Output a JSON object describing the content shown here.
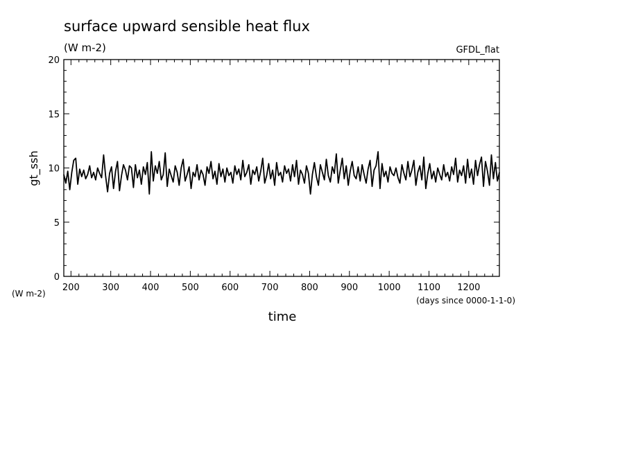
{
  "chart_data": {
    "type": "line",
    "title": "surface upward sensible heat flux",
    "subtitle": "(W m-2)",
    "source_label": "GFDL_flat",
    "ylabel": "gt_ssh",
    "yunit": "(W m-2)",
    "xlabel": "time",
    "xunit": "(days since 0000-1-1-0)",
    "xlim": [
      182,
      1277
    ],
    "ylim": [
      0,
      20
    ],
    "xticks": [
      "200",
      "300",
      "400",
      "500",
      "600",
      "700",
      "800",
      "900",
      "1000",
      "1100",
      "1200"
    ],
    "yticks": [
      "0",
      "5",
      "10",
      "15",
      "20"
    ],
    "grid": false,
    "legend": "none",
    "line_color": "#000000",
    "series": [
      {
        "x": [
          182,
          187,
          192,
          197,
          202,
          207,
          212,
          217,
          222,
          227,
          232,
          237,
          242,
          247,
          252,
          257,
          262,
          267,
          272,
          277,
          282,
          287,
          292,
          297,
          302,
          307,
          312,
          317,
          322,
          327,
          332,
          337,
          342,
          347,
          352,
          357,
          362,
          367,
          372,
          377,
          382,
          387,
          392,
          397,
          402,
          407,
          412,
          417,
          422,
          427,
          432,
          437,
          442,
          447,
          452,
          457,
          462,
          467,
          472,
          477,
          482,
          487,
          492,
          497,
          502,
          507,
          512,
          517,
          522,
          527,
          532,
          537,
          542,
          547,
          552,
          557,
          562,
          567,
          572,
          577,
          582,
          587,
          592,
          597,
          602,
          607,
          612,
          617,
          622,
          627,
          632,
          637,
          642,
          647,
          652,
          657,
          662,
          667,
          672,
          677,
          682,
          687,
          692,
          697,
          702,
          707,
          712,
          717,
          722,
          727,
          732,
          737,
          742,
          747,
          752,
          757,
          762,
          767,
          772,
          777,
          782,
          787,
          792,
          797,
          802,
          807,
          812,
          817,
          822,
          827,
          832,
          837,
          842,
          847,
          852,
          857,
          862,
          867,
          872,
          877,
          882,
          887,
          892,
          897,
          902,
          907,
          912,
          917,
          922,
          927,
          932,
          937,
          942,
          947,
          952,
          957,
          962,
          967,
          972,
          977,
          982,
          987,
          992,
          997,
          1002,
          1007,
          1012,
          1017,
          1022,
          1027,
          1032,
          1037,
          1042,
          1047,
          1052,
          1057,
          1062,
          1067,
          1072,
          1077,
          1082,
          1087,
          1092,
          1097,
          1102,
          1107,
          1112,
          1117,
          1122,
          1127,
          1132,
          1137,
          1142,
          1147,
          1152,
          1157,
          1162,
          1167,
          1172,
          1177,
          1182,
          1187,
          1192,
          1197,
          1202,
          1207,
          1212,
          1217,
          1222,
          1227,
          1232,
          1237,
          1242,
          1247,
          1252,
          1257,
          1262,
          1267,
          1272,
          1277
        ],
        "values": [
          9.4,
          8.6,
          9.7,
          8.0,
          9.6,
          10.7,
          10.9,
          8.5,
          9.9,
          9.2,
          9.8,
          9.0,
          9.4,
          10.2,
          9.1,
          9.6,
          8.9,
          10.0,
          9.5,
          9.1,
          11.2,
          9.3,
          7.8,
          9.5,
          10.1,
          8.1,
          9.7,
          10.6,
          7.9,
          9.3,
          10.3,
          9.8,
          8.9,
          10.2,
          10.0,
          8.2,
          10.3,
          9.1,
          9.8,
          8.5,
          10.1,
          9.4,
          10.5,
          7.6,
          11.5,
          8.8,
          10.2,
          9.5,
          10.6,
          8.9,
          9.4,
          11.4,
          8.3,
          9.9,
          9.3,
          8.7,
          10.2,
          9.6,
          8.4,
          10.0,
          10.8,
          8.8,
          9.4,
          10.1,
          8.1,
          9.6,
          9.2,
          10.3,
          8.9,
          9.8,
          9.4,
          8.4,
          10.1,
          9.5,
          10.6,
          9.0,
          9.7,
          8.5,
          10.4,
          9.2,
          9.9,
          8.7,
          10.0,
          9.3,
          9.6,
          8.6,
          10.2,
          9.4,
          9.9,
          8.9,
          10.7,
          9.2,
          9.6,
          10.3,
          8.5,
          9.8,
          9.4,
          10.1,
          8.8,
          9.7,
          10.9,
          8.6,
          9.3,
          10.4,
          9.0,
          9.8,
          8.4,
          10.5,
          9.3,
          9.6,
          8.7,
          10.2,
          9.5,
          9.9,
          8.8,
          10.3,
          9.2,
          10.7,
          8.5,
          9.8,
          9.4,
          8.6,
          10.2,
          9.5,
          7.6,
          9.4,
          10.5,
          9.2,
          8.4,
          10.3,
          9.6,
          8.9,
          10.8,
          9.3,
          8.7,
          10.1,
          9.5,
          11.3,
          8.6,
          9.8,
          10.9,
          9.0,
          10.2,
          8.4,
          9.7,
          10.6,
          9.3,
          9.0,
          10.1,
          8.8,
          10.3,
          9.4,
          8.6,
          9.9,
          10.7,
          8.3,
          9.8,
          10.2,
          11.5,
          8.1,
          10.4,
          9.2,
          9.7,
          8.7,
          10.1,
          9.5,
          9.3,
          10.0,
          9.1,
          8.6,
          10.3,
          9.5,
          8.9,
          10.6,
          9.2,
          9.8,
          10.7,
          8.4,
          9.6,
          10.2,
          8.9,
          11.0,
          8.1,
          9.5,
          10.4,
          9.0,
          9.7,
          8.7,
          10.0,
          9.4,
          8.9,
          10.3,
          9.2,
          9.6,
          8.8,
          10.1,
          9.4,
          10.9,
          8.7,
          9.8,
          9.3,
          10.2,
          8.6,
          10.8,
          9.1,
          9.9,
          8.5,
          10.7,
          9.3,
          10.3,
          11.0,
          8.3,
          10.6,
          9.7,
          8.4,
          11.2,
          9.0,
          10.5,
          8.8,
          9.6
        ]
      }
    ]
  }
}
